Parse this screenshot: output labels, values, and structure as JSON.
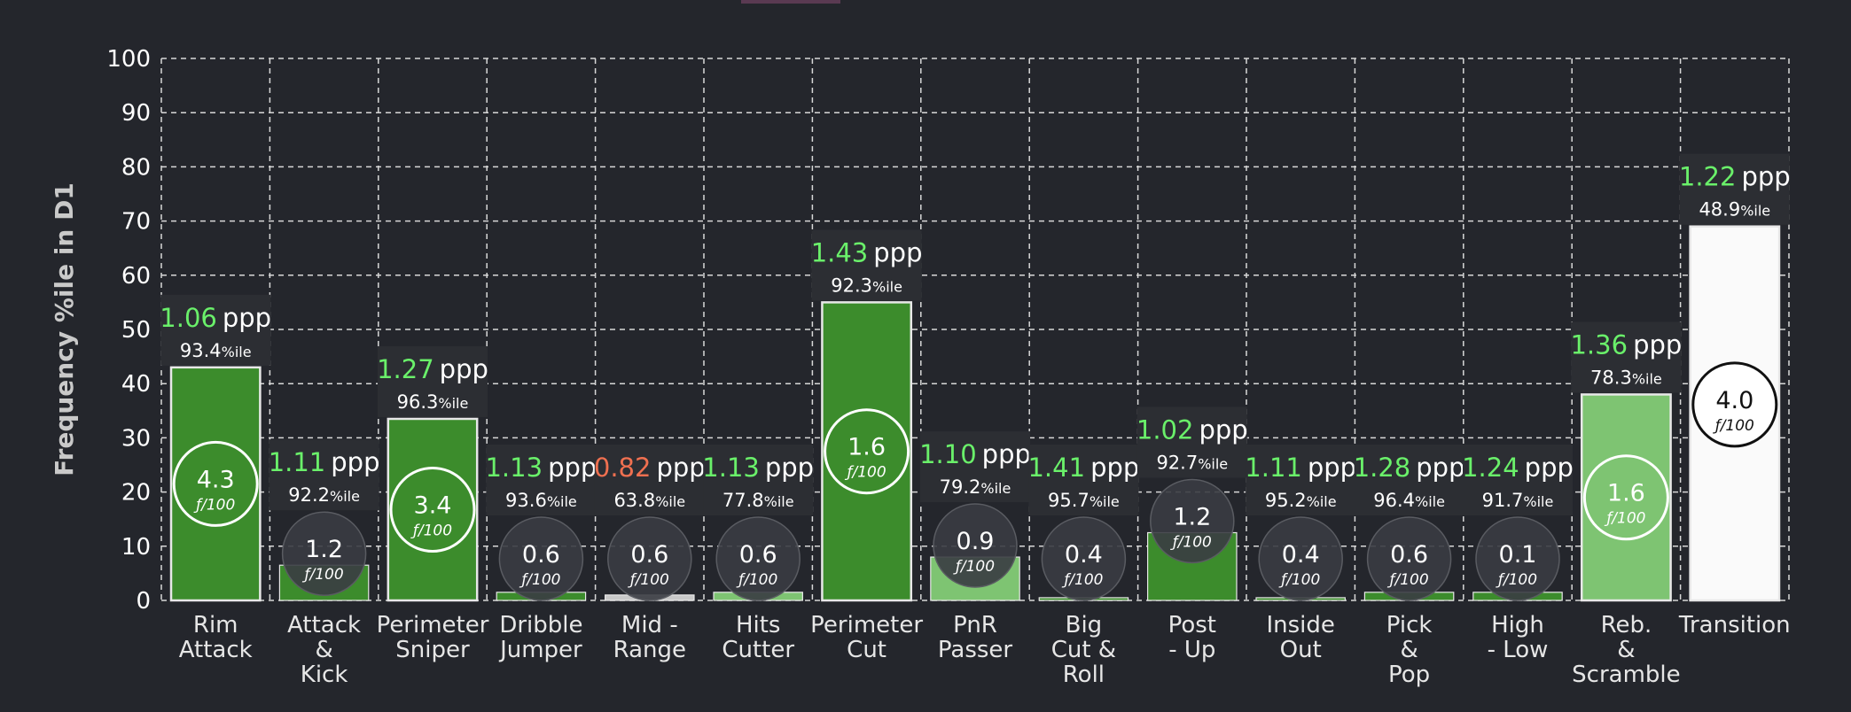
{
  "colors": {
    "background": "#24262c",
    "grid": "#d8d8d8",
    "text": "#ffffff",
    "ylabel": "#c9c9c9",
    "ppp_good": "#6af06a",
    "ppp_bad": "#f07050",
    "label_box": "#2c2e33",
    "bubble_fill": "#3a3c42",
    "bubble_stroke": "#5a5c62"
  },
  "chart_data": {
    "type": "bar",
    "ylabel": "Frequency %ile in D1",
    "ylim": [
      0,
      100
    ],
    "yticks": [
      0,
      10,
      20,
      30,
      40,
      50,
      60,
      70,
      80,
      90,
      100
    ],
    "grid": true,
    "freq_unit": "ƒ/100",
    "ppp_unit": "ppp",
    "pct_suffix": "%ile",
    "categories": [
      {
        "name": "Rim Attack",
        "lines": [
          "Rim",
          "Attack"
        ],
        "value": 43,
        "color": "#3c8c2c",
        "ppp": "1.06",
        "ppp_color": "#6af06a",
        "pctile": "93.4",
        "freq": "4.3",
        "freq_style": "outline"
      },
      {
        "name": "Attack & Kick",
        "lines": [
          "Attack",
          "&",
          "Kick"
        ],
        "value": 6.5,
        "color": "#3c8c2c",
        "ppp": "1.11",
        "ppp_color": "#6af06a",
        "pctile": "92.2",
        "freq": "1.2",
        "freq_style": "bubble"
      },
      {
        "name": "Perimeter Sniper",
        "lines": [
          "Perimeter",
          "Sniper"
        ],
        "value": 33.5,
        "color": "#3c8c2c",
        "ppp": "1.27",
        "ppp_color": "#6af06a",
        "pctile": "96.3",
        "freq": "3.4",
        "freq_style": "outline"
      },
      {
        "name": "Dribble Jumper",
        "lines": [
          "Dribble",
          "Jumper"
        ],
        "value": 1.5,
        "color": "#3c8c2c",
        "ppp": "1.13",
        "ppp_color": "#6af06a",
        "pctile": "93.6",
        "freq": "0.6",
        "freq_style": "bubble"
      },
      {
        "name": "Mid - Range",
        "lines": [
          "Mid -",
          "Range"
        ],
        "value": 1,
        "color": "#c8c8c8",
        "ppp": "0.82",
        "ppp_color": "#f07050",
        "pctile": "63.8",
        "freq": "0.6",
        "freq_style": "bubble"
      },
      {
        "name": "Hits Cutter",
        "lines": [
          "Hits",
          "Cutter"
        ],
        "value": 1.5,
        "color": "#7ec472",
        "ppp": "1.13",
        "ppp_color": "#6af06a",
        "pctile": "77.8",
        "freq": "0.6",
        "freq_style": "bubble"
      },
      {
        "name": "Perimeter Cut",
        "lines": [
          "Perimeter",
          "Cut"
        ],
        "value": 55,
        "color": "#3c8c2c",
        "ppp": "1.43",
        "ppp_color": "#6af06a",
        "pctile": "92.3",
        "freq": "1.6",
        "freq_style": "outline"
      },
      {
        "name": "PnR Passer",
        "lines": [
          "PnR",
          "Passer"
        ],
        "value": 8,
        "color": "#7ec472",
        "ppp": "1.10",
        "ppp_color": "#6af06a",
        "pctile": "79.2",
        "freq": "0.9",
        "freq_style": "bubble"
      },
      {
        "name": "Big Cut & Roll",
        "lines": [
          "Big",
          "Cut &",
          "Roll"
        ],
        "value": 0.5,
        "color": "#3c8c2c",
        "ppp": "1.41",
        "ppp_color": "#6af06a",
        "pctile": "95.7",
        "freq": "0.4",
        "freq_style": "bubble"
      },
      {
        "name": "Post - Up",
        "lines": [
          "Post",
          "- Up"
        ],
        "value": 12.5,
        "color": "#3c8c2c",
        "ppp": "1.02",
        "ppp_color": "#6af06a",
        "pctile": "92.7",
        "freq": "1.2",
        "freq_style": "bubble"
      },
      {
        "name": "Inside Out",
        "lines": [
          "Inside",
          "Out"
        ],
        "value": 0.5,
        "color": "#3c8c2c",
        "ppp": "1.11",
        "ppp_color": "#6af06a",
        "pctile": "95.2",
        "freq": "0.4",
        "freq_style": "bubble"
      },
      {
        "name": "Pick & Pop",
        "lines": [
          "Pick",
          "&",
          "Pop"
        ],
        "value": 1.5,
        "color": "#3c8c2c",
        "ppp": "1.28",
        "ppp_color": "#6af06a",
        "pctile": "96.4",
        "freq": "0.6",
        "freq_style": "bubble"
      },
      {
        "name": "High - Low",
        "lines": [
          "High",
          "- Low"
        ],
        "value": 1.5,
        "color": "#3c8c2c",
        "ppp": "1.24",
        "ppp_color": "#6af06a",
        "pctile": "91.7",
        "freq": "0.1",
        "freq_style": "bubble"
      },
      {
        "name": "Reb. & Scramble",
        "lines": [
          "Reb.",
          "&",
          "Scramble"
        ],
        "value": 38,
        "color": "#7ec472",
        "ppp": "1.36",
        "ppp_color": "#6af06a",
        "pctile": "78.3",
        "freq": "1.6",
        "freq_style": "outline"
      },
      {
        "name": "Transition",
        "lines": [
          "Transition"
        ],
        "value": 69,
        "color": "#fafafa",
        "ppp": "1.22",
        "ppp_color": "#6af06a",
        "pctile": "48.9",
        "freq": "4.0",
        "freq_style": "white"
      }
    ]
  }
}
